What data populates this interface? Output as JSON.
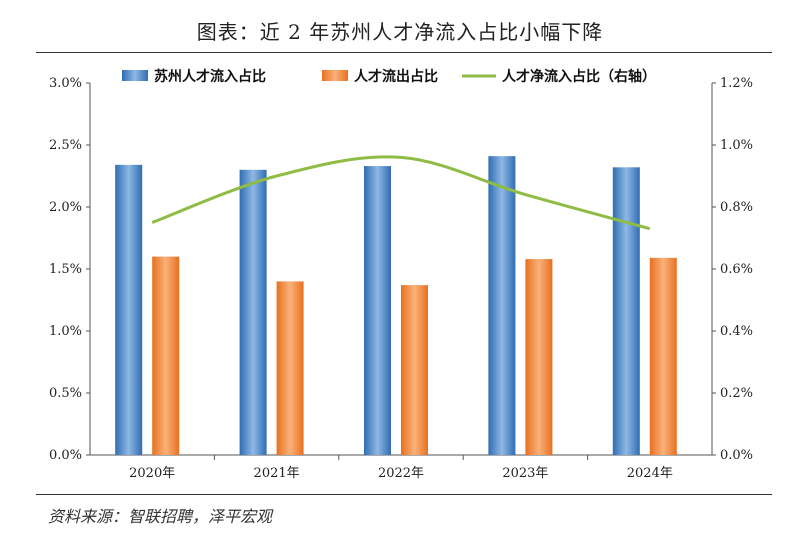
{
  "title": "图表：近 2 年苏州人才净流入占比小幅下降",
  "source": "资料来源：智联招聘，泽平宏观",
  "colors": {
    "inflow": "#3e7fc4",
    "outflow": "#f07d32",
    "net": "#8fbc45"
  },
  "chart_data": {
    "type": "bar",
    "categories": [
      "2020年",
      "2021年",
      "2022年",
      "2023年",
      "2024年"
    ],
    "series": [
      {
        "name": "苏州人才流入占比",
        "kind": "bar",
        "axis": "left",
        "values": [
          2.34,
          2.3,
          2.33,
          2.41,
          2.32
        ]
      },
      {
        "name": "人才流出占比",
        "kind": "bar",
        "axis": "left",
        "values": [
          1.6,
          1.4,
          1.37,
          1.58,
          1.59
        ]
      },
      {
        "name": "人才净流入占比（右轴）",
        "kind": "line",
        "axis": "right",
        "values": [
          0.75,
          0.9,
          0.96,
          0.84,
          0.73
        ]
      }
    ],
    "y_left": {
      "min": 0,
      "max": 3.0,
      "ticks": [
        "0.0%",
        "0.5%",
        "1.0%",
        "1.5%",
        "2.0%",
        "2.5%",
        "3.0%"
      ]
    },
    "y_right": {
      "min": 0,
      "max": 1.2,
      "ticks": [
        "0.0%",
        "0.2%",
        "0.4%",
        "0.6%",
        "0.8%",
        "1.0%",
        "1.2%"
      ]
    },
    "legend_position": "top",
    "grid": false
  }
}
